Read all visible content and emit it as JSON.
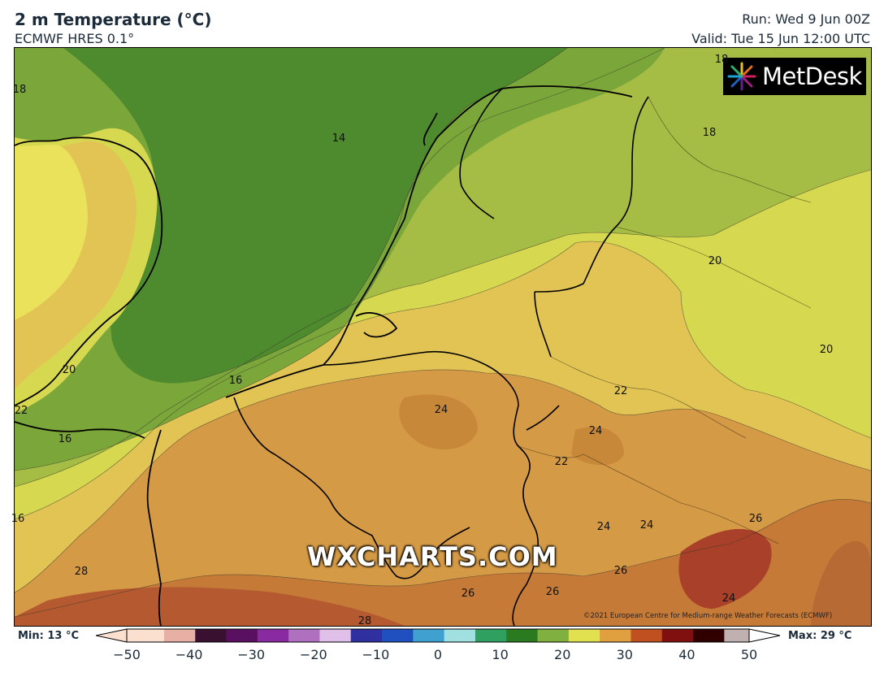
{
  "header": {
    "title": "2 m Temperature (°C)",
    "subtitle": "ECMWF HRES 0.1°",
    "run": "Run: Wed 9 Jun 00Z",
    "valid": "Valid: Tue 15 Jun 12:00 UTC"
  },
  "logo": {
    "text": "MetDesk",
    "icon": "starburst-icon"
  },
  "watermark": "WXCHARTS.COM",
  "credit": "©2021 European Centre for Medium-range Weather Forecasts (ECMWF)",
  "colorbar": {
    "min_label": "Min: 13 °C",
    "max_label": "Max: 29 °C",
    "ticks": [
      "−50",
      "−40",
      "−30",
      "−20",
      "−10",
      "0",
      "10",
      "20",
      "30",
      "40",
      "50"
    ],
    "range": [
      -50,
      50
    ]
  },
  "contour_labels": [
    "18",
    "14",
    "18",
    "16",
    "20",
    "20",
    "20",
    "22",
    "16",
    "24",
    "24",
    "22",
    "22",
    "16",
    "24",
    "24",
    "26",
    "26",
    "24",
    "28",
    "28",
    "26",
    "26",
    "18"
  ],
  "colors": {
    "temp_14": "#4e8a2e",
    "temp_16": "#7aa63a",
    "temp_18": "#a6bd45",
    "temp_20": "#d6d850",
    "temp_22": "#e2c455",
    "temp_24": "#d59a45",
    "temp_26": "#c67a38",
    "temp_28": "#a8402a"
  }
}
